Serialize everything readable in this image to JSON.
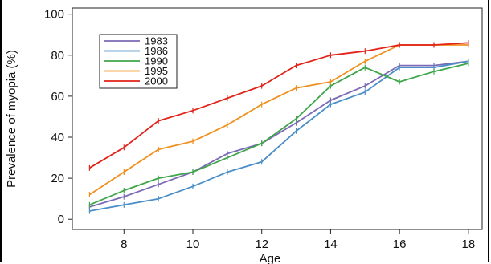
{
  "chart_data": {
    "type": "line",
    "title": "",
    "xlabel": "Age",
    "ylabel": "Prevalence of myopia (%)",
    "xlim": [
      6.5,
      18.4
    ],
    "ylim": [
      -5,
      103
    ],
    "x_ticks": [
      8,
      10,
      12,
      14,
      16,
      18
    ],
    "y_ticks": [
      0,
      20,
      40,
      60,
      80,
      100
    ],
    "legend_position": "top-left",
    "x": [
      7,
      8,
      9,
      10,
      11,
      12,
      13,
      14,
      15,
      16,
      17,
      18
    ],
    "series": [
      {
        "name": "1983",
        "color": "#7b69b5",
        "values": [
          6,
          11,
          17,
          23,
          32,
          37,
          47,
          58,
          65,
          75,
          75,
          77
        ]
      },
      {
        "name": "1986",
        "color": "#4a8ec8",
        "values": [
          4,
          7,
          10,
          16,
          23,
          28,
          43,
          56,
          62,
          74,
          74,
          77
        ]
      },
      {
        "name": "1990",
        "color": "#3fa64a",
        "values": [
          7,
          14,
          20,
          23,
          30,
          37,
          49,
          65,
          74,
          67,
          72,
          76
        ]
      },
      {
        "name": "1995",
        "color": "#f0901e",
        "values": [
          12,
          23,
          34,
          38,
          46,
          56,
          64,
          67,
          77,
          85,
          85,
          85
        ]
      },
      {
        "name": "2000",
        "color": "#e2231a",
        "values": [
          25,
          35,
          48,
          53,
          59,
          65,
          75,
          80,
          82,
          85,
          85,
          86
        ]
      }
    ]
  }
}
